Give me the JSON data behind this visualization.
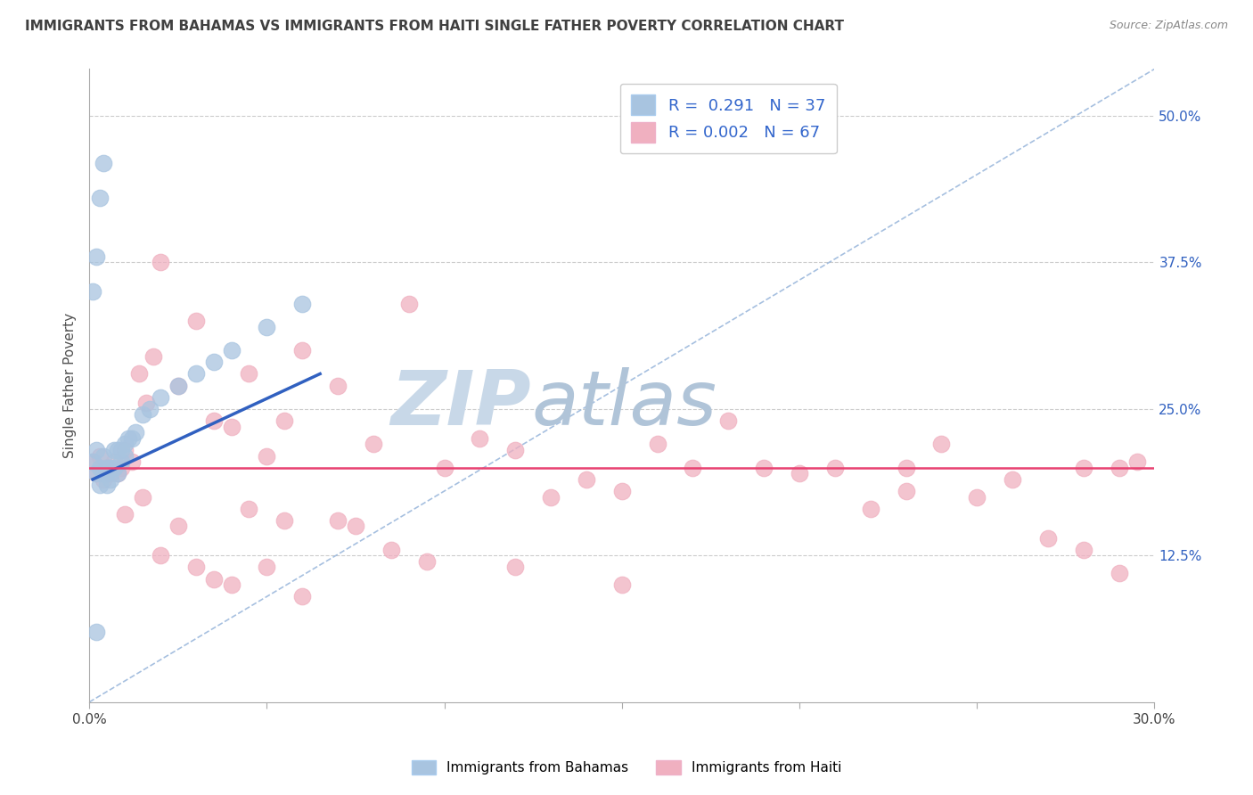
{
  "title": "IMMIGRANTS FROM BAHAMAS VS IMMIGRANTS FROM HAITI SINGLE FATHER POVERTY CORRELATION CHART",
  "source": "Source: ZipAtlas.com",
  "ylabel": "Single Father Poverty",
  "x_ticks": [
    0.0,
    0.05,
    0.1,
    0.15,
    0.2,
    0.25,
    0.3
  ],
  "y_ticks_right": [
    "50.0%",
    "37.5%",
    "25.0%",
    "12.5%"
  ],
  "y_ticks_right_vals": [
    0.5,
    0.375,
    0.25,
    0.125
  ],
  "xlim": [
    0.0,
    0.3
  ],
  "ylim": [
    0.0,
    0.54
  ],
  "r_bahamas": 0.291,
  "n_bahamas": 37,
  "r_haiti": 0.002,
  "n_haiti": 67,
  "bahamas_color": "#a8c4e0",
  "haiti_color": "#f0b0c0",
  "trendline_bahamas_color": "#3060c0",
  "trendline_haiti_color": "#e84070",
  "diagonal_color": "#90b0d8",
  "watermark_zip_color": "#c8d8e8",
  "watermark_atlas_color": "#b0c8e0",
  "background_color": "#ffffff",
  "grid_color": "#cccccc",
  "title_color": "#404040",
  "legend_text_color": "#3366cc",
  "bahamas_x": [
    0.001,
    0.002,
    0.002,
    0.003,
    0.003,
    0.004,
    0.004,
    0.005,
    0.005,
    0.005,
    0.006,
    0.006,
    0.007,
    0.007,
    0.008,
    0.008,
    0.009,
    0.009,
    0.01,
    0.01,
    0.011,
    0.012,
    0.013,
    0.015,
    0.017,
    0.02,
    0.025,
    0.03,
    0.035,
    0.04,
    0.05,
    0.06,
    0.001,
    0.002,
    0.003,
    0.004,
    0.002
  ],
  "bahamas_y": [
    0.205,
    0.195,
    0.215,
    0.185,
    0.2,
    0.21,
    0.195,
    0.2,
    0.195,
    0.185,
    0.2,
    0.19,
    0.215,
    0.2,
    0.215,
    0.195,
    0.205,
    0.215,
    0.22,
    0.21,
    0.225,
    0.225,
    0.23,
    0.245,
    0.25,
    0.26,
    0.27,
    0.28,
    0.29,
    0.3,
    0.32,
    0.34,
    0.35,
    0.38,
    0.43,
    0.46,
    0.06
  ],
  "bahamas_trendline_x": [
    0.001,
    0.065
  ],
  "bahamas_trendline_y": [
    0.19,
    0.28
  ],
  "haiti_trendline_y": 0.2,
  "haiti_x": [
    0.001,
    0.002,
    0.003,
    0.004,
    0.005,
    0.006,
    0.007,
    0.008,
    0.009,
    0.01,
    0.012,
    0.014,
    0.016,
    0.018,
    0.02,
    0.025,
    0.03,
    0.035,
    0.04,
    0.045,
    0.05,
    0.055,
    0.06,
    0.07,
    0.08,
    0.09,
    0.1,
    0.11,
    0.12,
    0.13,
    0.14,
    0.15,
    0.16,
    0.17,
    0.18,
    0.19,
    0.2,
    0.21,
    0.22,
    0.23,
    0.24,
    0.25,
    0.26,
    0.27,
    0.28,
    0.29,
    0.295,
    0.01,
    0.02,
    0.03,
    0.04,
    0.05,
    0.06,
    0.07,
    0.015,
    0.025,
    0.035,
    0.045,
    0.055,
    0.075,
    0.085,
    0.095,
    0.15,
    0.23,
    0.28,
    0.29,
    0.12
  ],
  "haiti_y": [
    0.205,
    0.195,
    0.21,
    0.19,
    0.2,
    0.195,
    0.205,
    0.195,
    0.2,
    0.215,
    0.205,
    0.28,
    0.255,
    0.295,
    0.375,
    0.27,
    0.325,
    0.24,
    0.235,
    0.28,
    0.21,
    0.24,
    0.3,
    0.27,
    0.22,
    0.34,
    0.2,
    0.225,
    0.215,
    0.175,
    0.19,
    0.18,
    0.22,
    0.2,
    0.24,
    0.2,
    0.195,
    0.2,
    0.165,
    0.18,
    0.22,
    0.175,
    0.19,
    0.14,
    0.2,
    0.2,
    0.205,
    0.16,
    0.125,
    0.115,
    0.1,
    0.115,
    0.09,
    0.155,
    0.175,
    0.15,
    0.105,
    0.165,
    0.155,
    0.15,
    0.13,
    0.12,
    0.1,
    0.2,
    0.13,
    0.11,
    0.115
  ]
}
